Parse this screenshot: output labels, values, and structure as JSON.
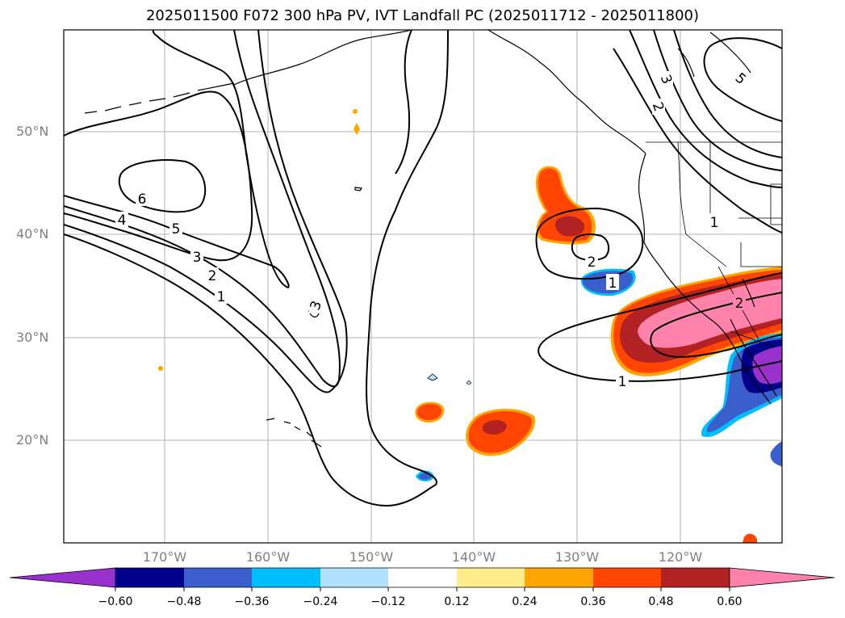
{
  "title": "2025011500 F072 300 hPa PV, IVT Landfall PC (2025011712 - 2025011800)",
  "axes": {
    "lat_labels": [
      "50°N",
      "40°N",
      "30°N",
      "20°N"
    ],
    "lon_labels": [
      "170°W",
      "160°W",
      "150°W",
      "140°W",
      "130°W",
      "120°W"
    ]
  },
  "contour_labels": [
    "6",
    "5",
    "4",
    "3",
    "2",
    "1",
    "3",
    "2",
    "1",
    "1",
    "2",
    "3",
    "2",
    "1",
    "5"
  ],
  "colorbar": {
    "tick_labels": [
      "−0.60",
      "−0.48",
      "−0.36",
      "−0.24",
      "−0.12",
      "0.12",
      "0.24",
      "0.36",
      "0.48",
      "0.60"
    ],
    "colors": [
      "#9932cc",
      "#00008b",
      "#3a5fcd",
      "#00bfff",
      "#b0e2ff",
      "#ffffff",
      "#ffec8b",
      "#ffa500",
      "#ff4500",
      "#b22222",
      "#ff82ab"
    ]
  }
}
